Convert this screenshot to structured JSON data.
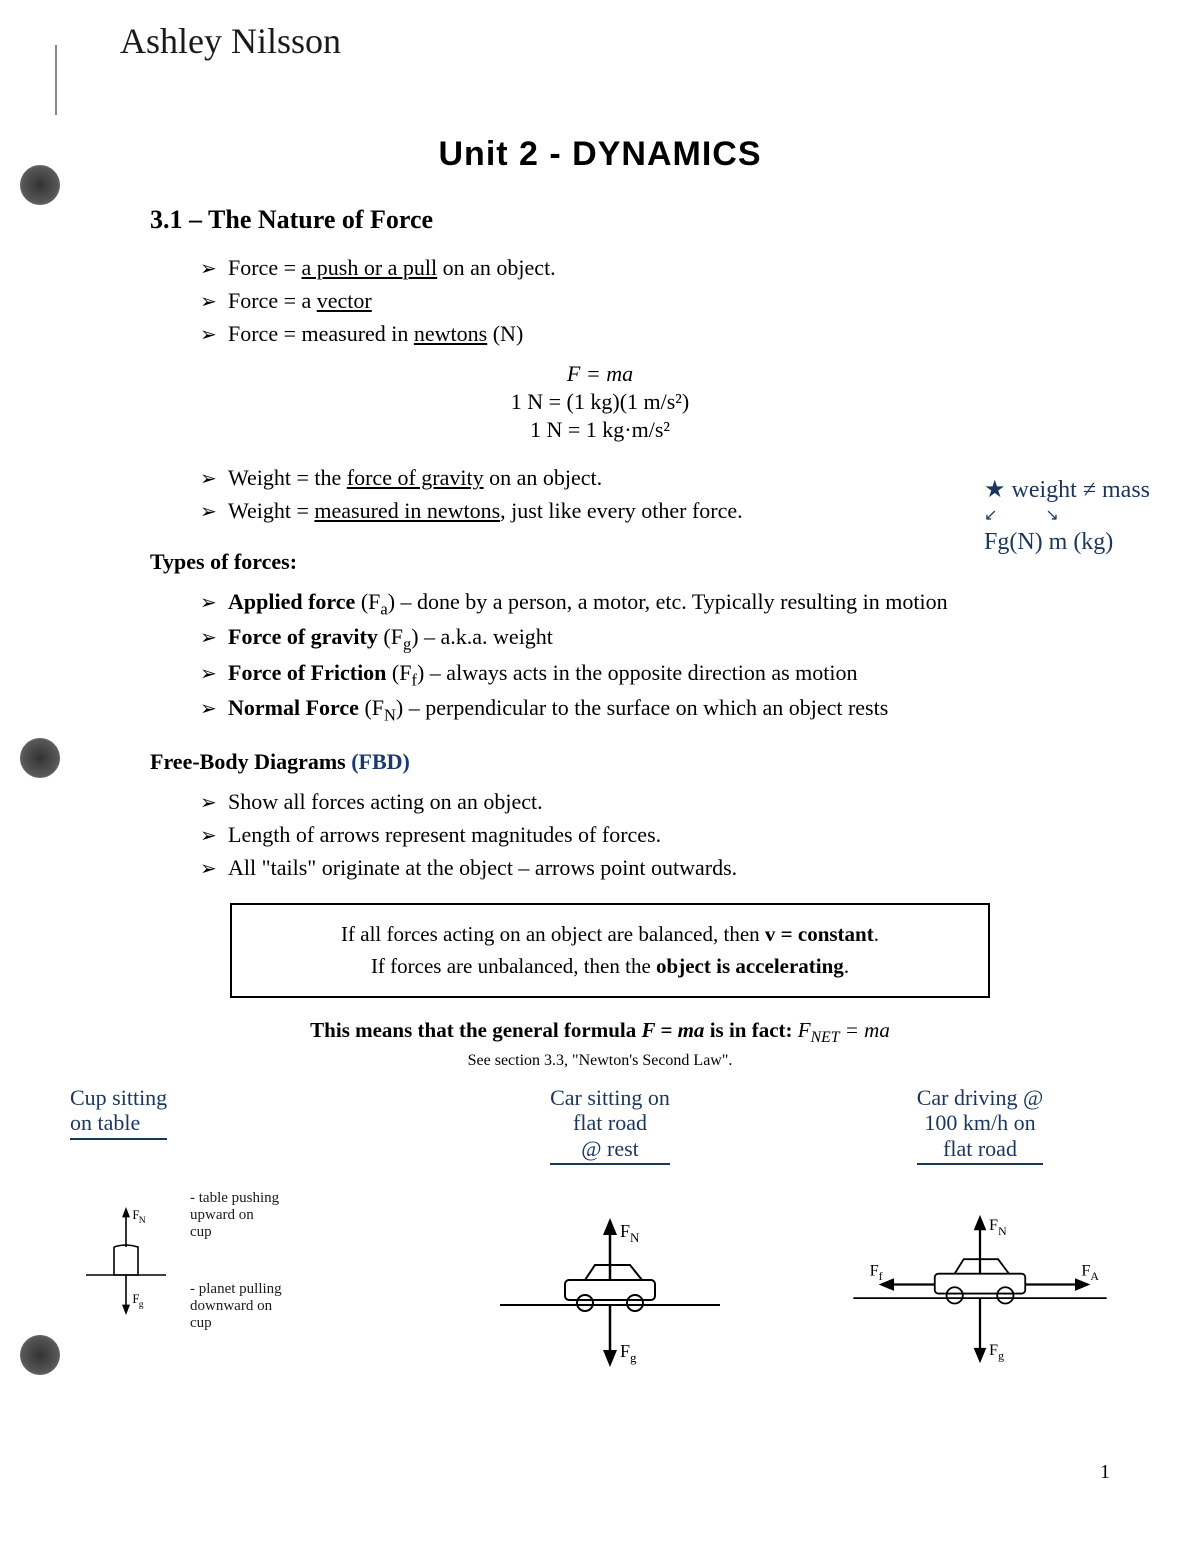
{
  "student_name": "Ashley Nilsson",
  "title": "Unit 2 - DYNAMICS",
  "section": {
    "heading": "3.1 – The Nature of Force",
    "force_defs": [
      "Force = <u>a push or a pull</u> on an object.",
      "Force = a <u>vector</u>",
      "Force = measured in <u>newtons</u> (N)"
    ],
    "eq1": "F = ma",
    "eq2": "1 N = (1 kg)(1 m/s²)",
    "eq3": "1 N = 1 kg·m/s²",
    "weight_defs": [
      "Weight = the <u>force of gravity</u> on an object.",
      "Weight = <u>measured in newtons</u>, just like every other force."
    ],
    "types_heading": "Types of forces:",
    "types": [
      "<b>Applied force</b> (F<sub>a</sub>) – done by a person, a motor, etc.  Typically resulting in motion",
      "<b>Force of gravity</b> (F<sub>g</sub>) – a.k.a. weight",
      "<b>Force of Friction</b> (F<sub>f</sub>) – always acts in the opposite direction as motion",
      "<b>Normal Force</b> (F<sub>N</sub>) – perpendicular to the surface on which an object rests"
    ],
    "fbd_heading": "Free-Body Diagrams",
    "fbd_label": "(FBD)",
    "fbd_points": [
      "Show all forces acting on an object.",
      "Length of arrows represent magnitudes of forces.",
      "All \"tails\" originate at the object – arrows point outwards."
    ],
    "box_line1": "If all forces acting on an object are balanced, then <b>v = constant</b>.",
    "box_line2": "If forces are unbalanced, then the <b>object is accelerating</b>.",
    "general": "<b>This means that the general formula <i>F = ma</i> is in fact:</b>  <i>F<sub>NET</sub> = ma</i>",
    "see_section": "See section 3.3, \"Newton's Second Law\"."
  },
  "margin_note": {
    "line1": "★ weight ≠ mass",
    "line2": "Fg(N)      m (kg)"
  },
  "diagrams": {
    "d1": {
      "title": "Cup sitting<br>on table",
      "note1": "table pushing<br>upward on<br>cup",
      "note2": "planet pulling<br>downward on<br>cup"
    },
    "d2": {
      "title": "Car sitting on<br>flat road<br>@ rest"
    },
    "d3": {
      "title": "Car driving @<br>100 km/h on<br>flat road"
    }
  },
  "page_num": "1",
  "colors": {
    "ink_blue": "#1a365d",
    "text": "#000000"
  }
}
